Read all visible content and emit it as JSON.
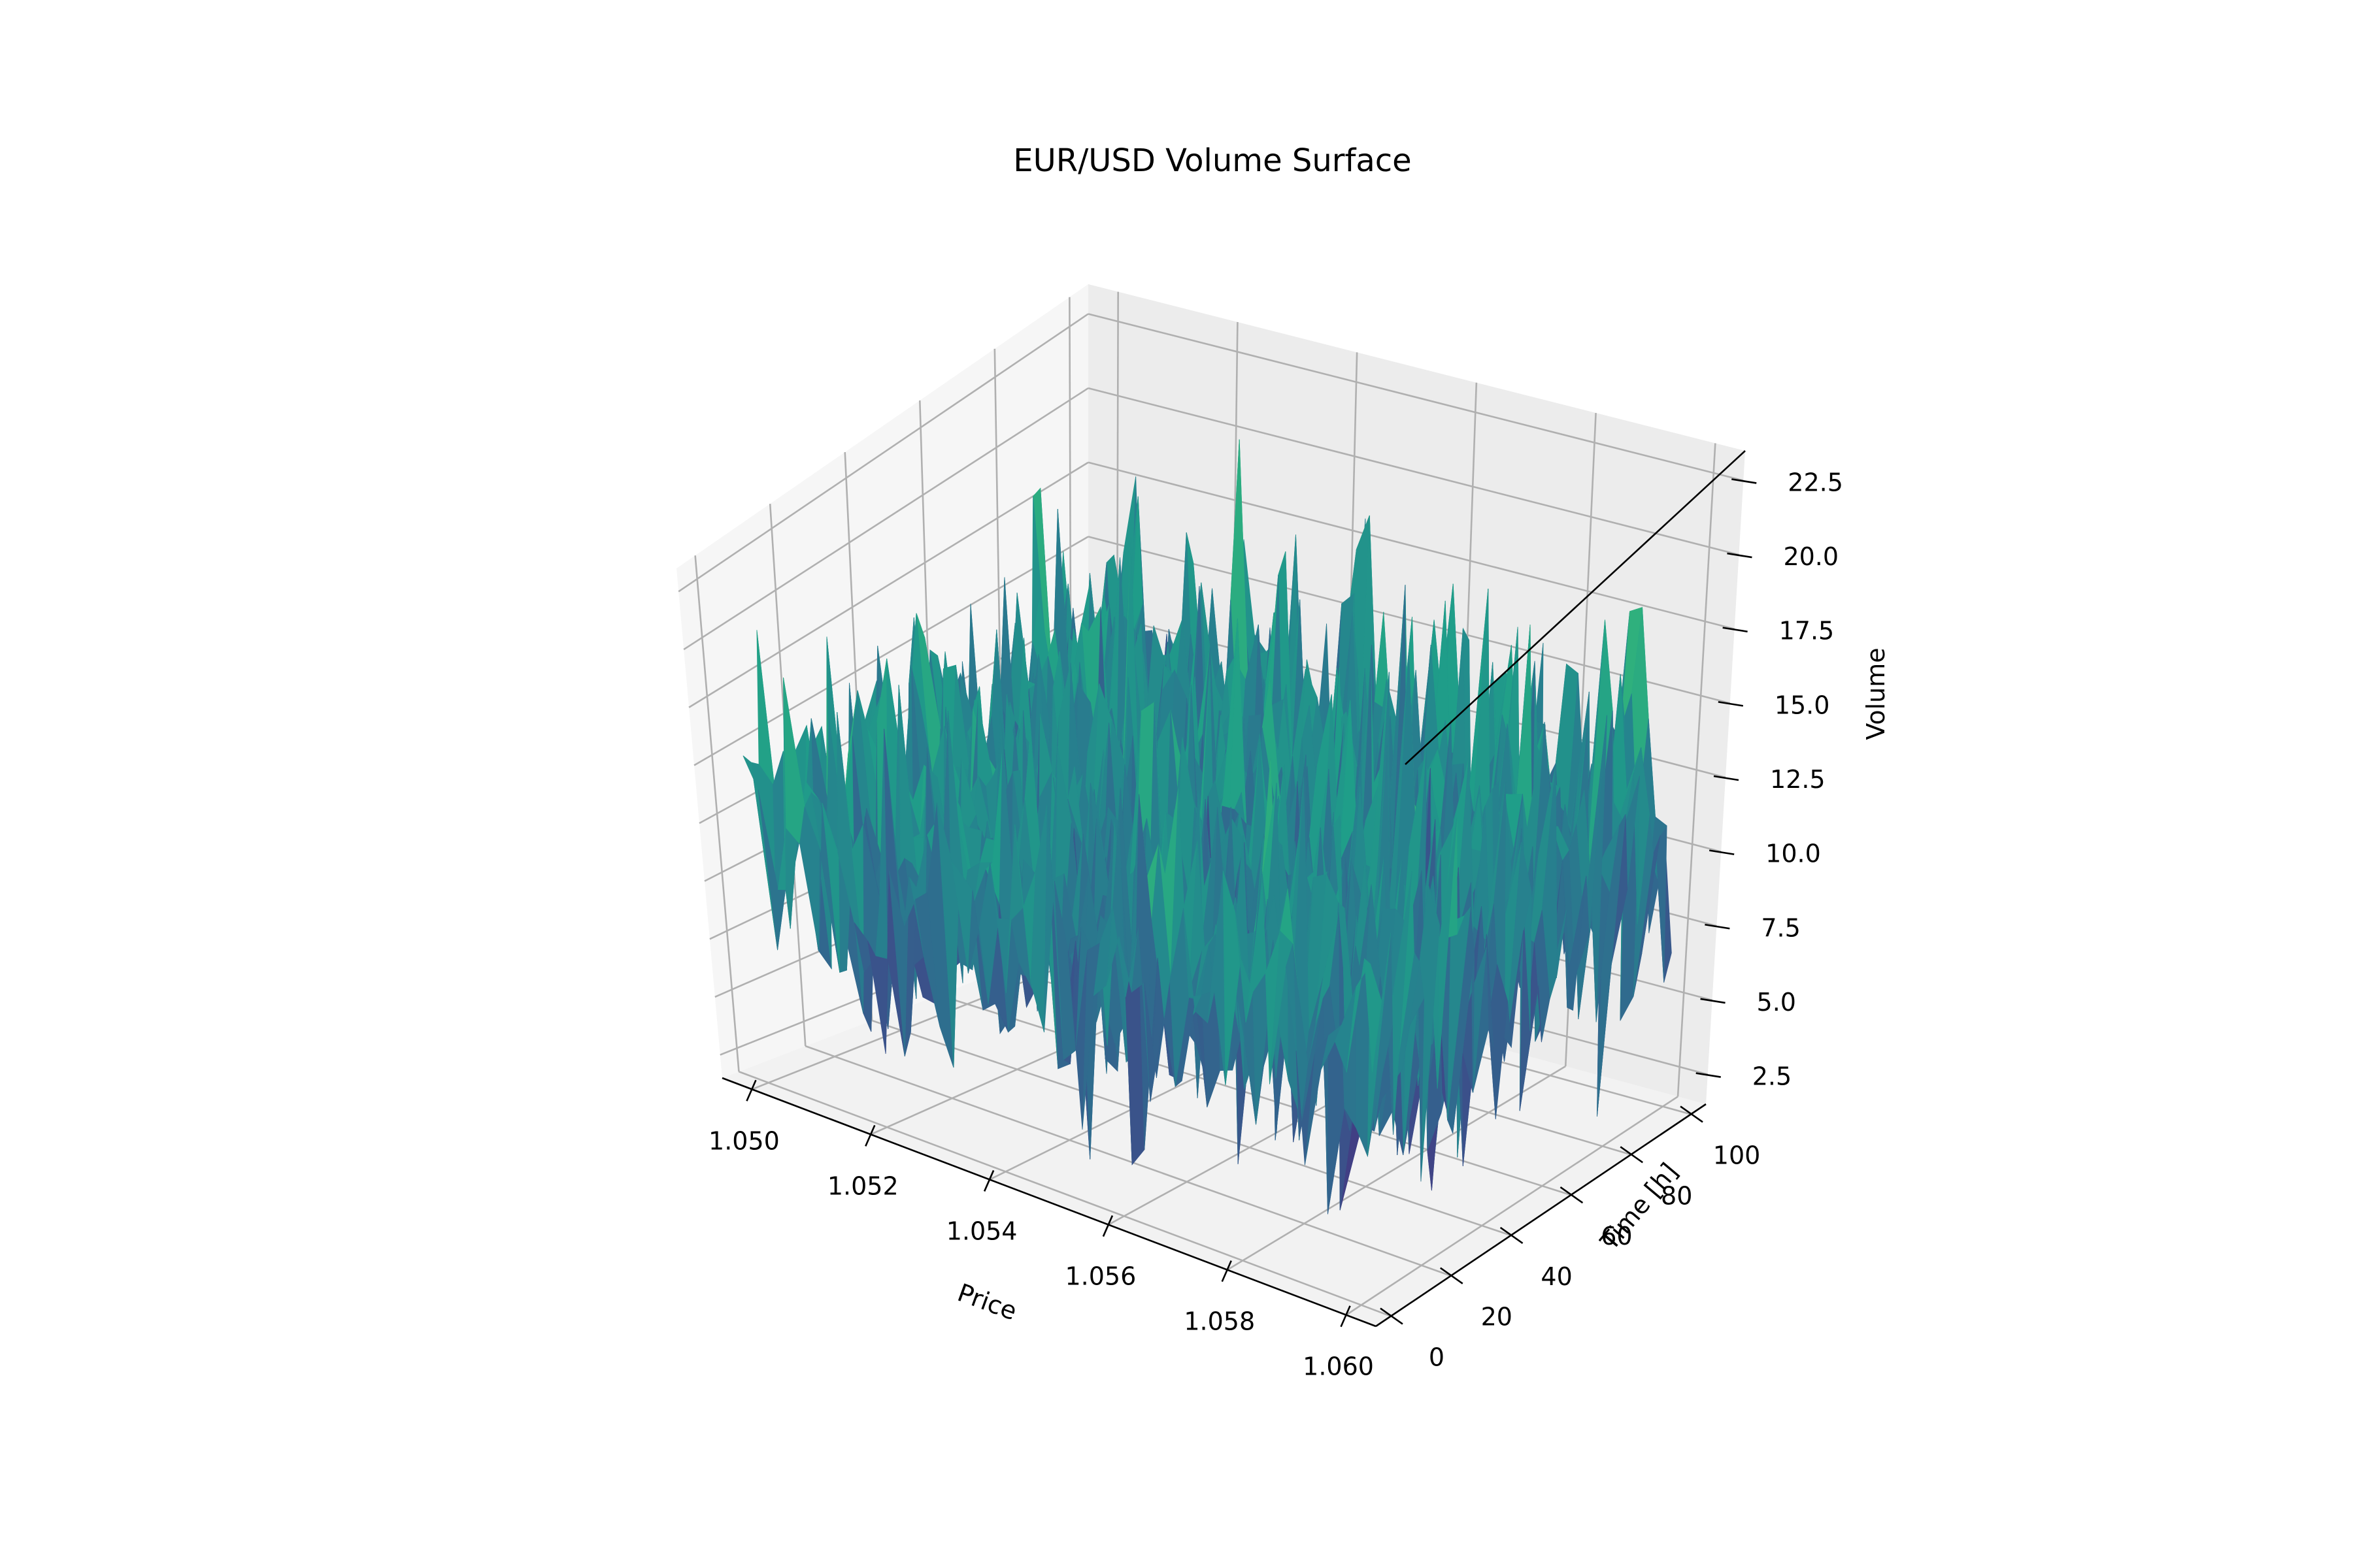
{
  "chart_data": {
    "type": "surface",
    "title": "EUR/USD Volume Surface",
    "xlabel": "Price",
    "ylabel": "Time [h]",
    "zlabel": "Volume",
    "xlim": [
      1.0495,
      1.0605
    ],
    "ylim": [
      -5,
      105
    ],
    "zlim": [
      1.5,
      23.5
    ],
    "x_ticks": [
      "1.050",
      "1.052",
      "1.054",
      "1.056",
      "1.058",
      "1.060"
    ],
    "y_ticks": [
      "0",
      "20",
      "40",
      "60",
      "80",
      "100"
    ],
    "z_ticks": [
      "2.5",
      "5.0",
      "7.5",
      "10.0",
      "12.5",
      "15.0",
      "17.5",
      "20.0",
      "22.5"
    ],
    "x_range": [
      1.05,
      1.06
    ],
    "y_range": [
      0,
      100
    ],
    "z_range": [
      2.3,
      23.0
    ],
    "z_mean_approx": 11.0,
    "grid_x_points": 50,
    "grid_y_points": 50,
    "colormap": "viridis",
    "grid": true,
    "legend": "none"
  }
}
